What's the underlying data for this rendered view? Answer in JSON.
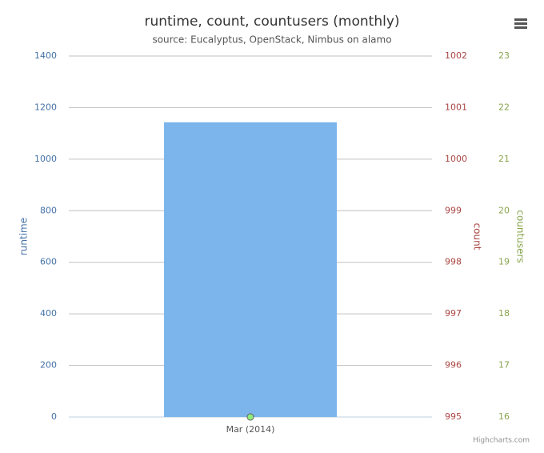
{
  "chart_data": {
    "type": "bar",
    "title": "runtime, count, countusers (monthly)",
    "subtitle": "source: Eucalyptus, OpenStack, Nimbus on alamo",
    "credits": "Highcharts.com",
    "categories": [
      "Mar (2014)"
    ],
    "series": [
      {
        "name": "runtime",
        "type": "bar",
        "color": "#7cb5ec",
        "values": [
          1143
        ]
      },
      {
        "name": "count",
        "type": "line",
        "axis": "y2",
        "color": "#434348",
        "values": [
          995
        ]
      },
      {
        "name": "countusers",
        "type": "line",
        "axis": "y3",
        "color": "#90ed7d",
        "values": [
          16
        ]
      }
    ],
    "ylabel": "runtime",
    "y2label": "count",
    "y3label": "countusers",
    "axis_colors": {
      "y": "#4572a7",
      "y2": "#aa4643",
      "y3": "#89a54e"
    },
    "ylim": [
      0,
      1400
    ],
    "yticks": [
      0,
      200,
      400,
      600,
      800,
      1000,
      1200,
      1400
    ],
    "y2lim": [
      995,
      1002
    ],
    "y2ticks": [
      995,
      996,
      997,
      998,
      999,
      1000,
      1001,
      1002
    ],
    "y3lim": [
      16,
      23
    ],
    "y3ticks": [
      16,
      17,
      18,
      19,
      20,
      21,
      22,
      23
    ],
    "grid": true
  }
}
